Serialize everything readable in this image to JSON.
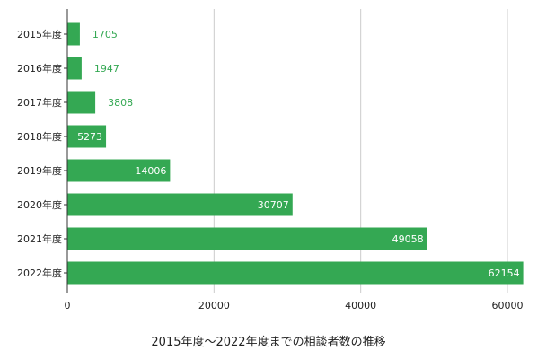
{
  "chart_data": {
    "type": "bar",
    "orientation": "horizontal",
    "title": "2015年度～2022年度までの相談者数の推移",
    "categories": [
      "2015年度",
      "2016年度",
      "2017年度",
      "2018年度",
      "2019年度",
      "2020年度",
      "2021年度",
      "2022年度"
    ],
    "values": [
      1705,
      1947,
      3808,
      5273,
      14006,
      30707,
      49058,
      62154
    ],
    "xlim": [
      0,
      60000
    ],
    "xticks": [
      0,
      20000,
      40000,
      60000
    ],
    "grid": "vertical",
    "legend": "none",
    "bar_color": "#34a853",
    "label_inside_color": "#ffffff",
    "label_outside_color": "#34a853"
  }
}
